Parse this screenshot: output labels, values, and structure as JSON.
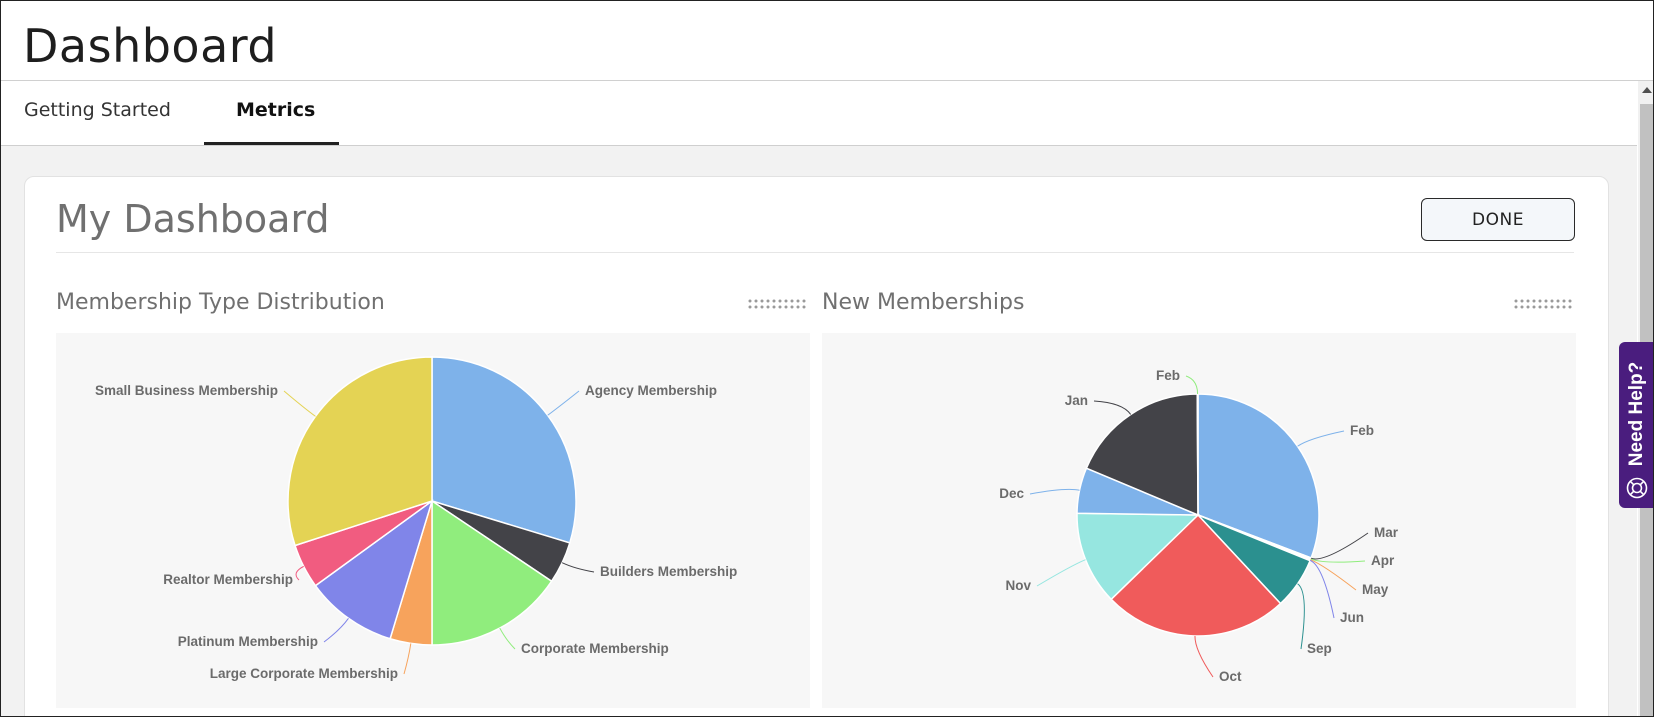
{
  "header": {
    "title": "Dashboard"
  },
  "tabs": [
    {
      "label": "Getting Started",
      "active": false
    },
    {
      "label": "Metrics",
      "active": true
    }
  ],
  "dashboard": {
    "title": "My Dashboard",
    "done_label": "DONE"
  },
  "widgets": [
    {
      "title": "Membership Type Distribution",
      "drag_icon": "drag-handle-icon"
    },
    {
      "title": "New Memberships",
      "drag_icon": "drag-handle-icon"
    }
  ],
  "need_help": {
    "label": "Need Help?",
    "icon": "lifebuoy-icon",
    "color": "#4a1d7e"
  },
  "scrollbar": {
    "icon": "arrow-up-icon"
  },
  "chart_data": [
    {
      "type": "pie",
      "title": "Membership Type Distribution",
      "categories": [
        "Agency Membership",
        "Builders Membership",
        "Corporate Membership",
        "Large Corporate Membership",
        "Platinum Membership",
        "Realtor Membership",
        "Small Business Membership"
      ],
      "values": [
        29.7,
        4.7,
        15.6,
        4.7,
        10.3,
        5.0,
        30.0
      ],
      "colors": [
        "#7eb2ea",
        "#434348",
        "#90ed7d",
        "#f7a35c",
        "#8085e9",
        "#f15c80",
        "#e4d354"
      ],
      "unit": "percent (estimated from slice angles)",
      "legend": "none (data labels with connectors)"
    },
    {
      "type": "pie",
      "title": "New Memberships",
      "categories": [
        "Feb",
        "Mar",
        "Apr",
        "May",
        "Jun",
        "Sep",
        "Oct",
        "Nov",
        "Dec",
        "Jan",
        "Feb"
      ],
      "values": [
        30.8,
        0.1,
        0.1,
        0.1,
        0.1,
        6.9,
        24.7,
        12.5,
        6.1,
        18.6,
        0.1
      ],
      "colors": [
        "#7eb2ea",
        "#434348",
        "#90ed7d",
        "#f7a35c",
        "#8085e9",
        "#2b908f",
        "#f05b5b",
        "#96e6e0",
        "#7eb2ea",
        "#434348",
        "#90ed7d"
      ],
      "unit": "percent (estimated from slice angles)",
      "legend": "none (data labels with connectors)"
    }
  ]
}
